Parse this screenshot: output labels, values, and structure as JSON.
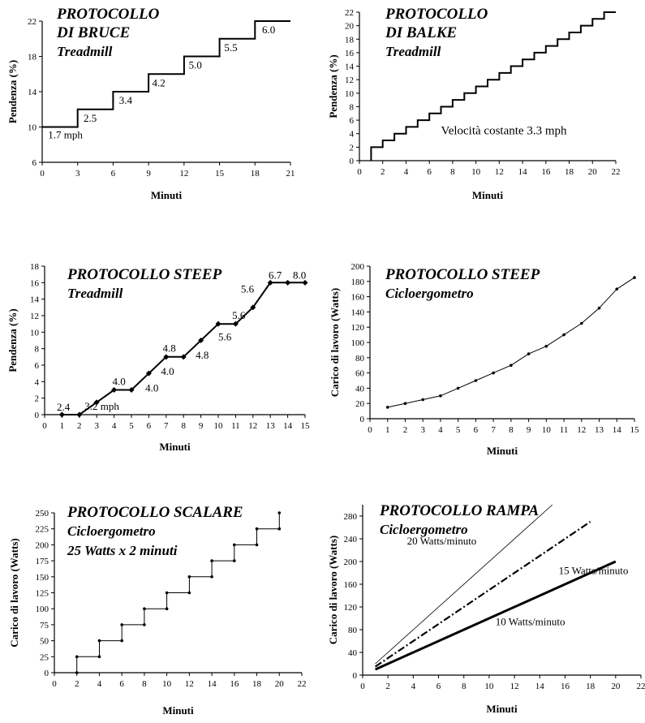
{
  "chart_data": [
    {
      "id": "bruce",
      "type": "line",
      "step": true,
      "title": [
        "PROTOCOLLO",
        "DI BRUCE"
      ],
      "subtitle": [
        "Treadmill"
      ],
      "xlabel": "Minuti",
      "ylabel": "Pendenza (%)",
      "xlim": [
        0,
        21
      ],
      "ylim": [
        6,
        22
      ],
      "xticks": [
        0,
        3,
        6,
        9,
        12,
        15,
        18,
        21
      ],
      "yticks": [
        6,
        10,
        14,
        18,
        22
      ],
      "series": [
        {
          "x": [
            0,
            3,
            3,
            6,
            6,
            9,
            9,
            12,
            12,
            15,
            15,
            18,
            18,
            21
          ],
          "y": [
            10,
            10,
            12,
            12,
            14,
            14,
            16,
            16,
            18,
            18,
            20,
            20,
            22,
            22
          ],
          "style": "solid",
          "width": 2,
          "markers": false
        }
      ],
      "annotations": [
        {
          "text": "1.7 mph",
          "x": 0.5,
          "y": 8.7
        },
        {
          "text": "2.5",
          "x": 3.5,
          "y": 10.6
        },
        {
          "text": "3.4",
          "x": 6.5,
          "y": 12.6
        },
        {
          "text": "4.2",
          "x": 9.3,
          "y": 14.6
        },
        {
          "text": "5.0",
          "x": 12.4,
          "y": 16.6
        },
        {
          "text": "5.5",
          "x": 15.4,
          "y": 18.6
        },
        {
          "text": "6.0",
          "x": 18.6,
          "y": 20.6
        }
      ]
    },
    {
      "id": "balke",
      "type": "line",
      "step": true,
      "title": [
        "PROTOCOLLO",
        "DI BALKE"
      ],
      "subtitle": [
        "Treadmill"
      ],
      "xlabel": "Minuti",
      "ylabel": "Pendenza (%)",
      "xlim": [
        0,
        22
      ],
      "ylim": [
        0,
        22
      ],
      "xticks": [
        0,
        2,
        4,
        6,
        8,
        10,
        12,
        14,
        16,
        18,
        20,
        22
      ],
      "yticks": [
        0,
        2,
        4,
        6,
        8,
        10,
        12,
        14,
        16,
        18,
        20,
        22
      ],
      "series": [
        {
          "x": [
            1,
            1,
            2,
            2,
            3,
            3,
            4,
            4,
            5,
            5,
            6,
            6,
            7,
            7,
            8,
            8,
            9,
            9,
            10,
            10,
            11,
            11,
            12,
            12,
            13,
            13,
            14,
            14,
            15,
            15,
            16,
            16,
            17,
            17,
            18,
            18,
            19,
            19,
            20,
            20,
            21,
            21,
            22
          ],
          "y": [
            0,
            2,
            2,
            3,
            3,
            4,
            4,
            5,
            5,
            6,
            6,
            7,
            7,
            8,
            8,
            9,
            9,
            10,
            10,
            11,
            11,
            12,
            12,
            13,
            13,
            14,
            14,
            15,
            15,
            16,
            16,
            17,
            17,
            18,
            18,
            19,
            19,
            20,
            20,
            21,
            21,
            22,
            22
          ],
          "style": "solid",
          "width": 2,
          "markers": false
        }
      ],
      "annotations": [
        {
          "text": "Velocità costante 3.3 mph",
          "x": 7,
          "y": 3.9,
          "big": true
        }
      ]
    },
    {
      "id": "steep-treadmill",
      "type": "line",
      "title": [
        "PROTOCOLLO STEEP"
      ],
      "subtitle": [
        "Treadmill"
      ],
      "xlabel": "Minuti",
      "ylabel": "Pendenza (%)",
      "xlim": [
        0,
        15
      ],
      "ylim": [
        0,
        18
      ],
      "xticks": [
        0,
        1,
        2,
        3,
        4,
        5,
        6,
        7,
        8,
        9,
        10,
        11,
        12,
        13,
        14,
        15
      ],
      "yticks": [
        0,
        2,
        4,
        6,
        8,
        10,
        12,
        14,
        16,
        18
      ],
      "series": [
        {
          "x": [
            1,
            2,
            3,
            4,
            5,
            6,
            7,
            8,
            9,
            10,
            11,
            12,
            13,
            14,
            15
          ],
          "y": [
            0,
            0,
            1.5,
            3,
            3,
            5,
            7,
            7,
            9,
            11,
            11,
            13,
            16,
            16,
            16
          ],
          "style": "solid",
          "width": 2,
          "markers": "diamond"
        }
      ],
      "annotations": [
        {
          "text": "2.4",
          "x": 0.7,
          "y": 0.5
        },
        {
          "text": "3.2 mph",
          "x": 2.3,
          "y": 0.6
        },
        {
          "text": "4.0",
          "x": 3.9,
          "y": 3.6
        },
        {
          "text": "4.0",
          "x": 5.8,
          "y": 2.8
        },
        {
          "text": "4.0",
          "x": 6.7,
          "y": 4.8
        },
        {
          "text": "4.8",
          "x": 6.8,
          "y": 7.6
        },
        {
          "text": "4.8",
          "x": 8.7,
          "y": 6.8
        },
        {
          "text": "5.6",
          "x": 10.0,
          "y": 9.0
        },
        {
          "text": "5.6",
          "x": 10.8,
          "y": 11.6
        },
        {
          "text": "5.6",
          "x": 11.3,
          "y": 14.8
        },
        {
          "text": "6.7",
          "x": 12.9,
          "y": 16.5
        },
        {
          "text": "8.0",
          "x": 14.3,
          "y": 16.5
        }
      ]
    },
    {
      "id": "steep-cycle",
      "type": "line",
      "title": [
        "PROTOCOLLO STEEP"
      ],
      "subtitle": [
        "Cicloergometro"
      ],
      "xlabel": "Minuti",
      "ylabel": "Carico di lavoro  (Watts)",
      "xlim": [
        0,
        15
      ],
      "ylim": [
        0,
        200
      ],
      "xticks": [
        0,
        1,
        2,
        3,
        4,
        5,
        6,
        7,
        8,
        9,
        10,
        11,
        12,
        13,
        14,
        15
      ],
      "yticks": [
        0,
        20,
        40,
        60,
        80,
        100,
        120,
        140,
        160,
        180,
        200
      ],
      "series": [
        {
          "x": [
            1,
            2,
            3,
            4,
            5,
            6,
            7,
            8,
            9,
            10,
            11,
            12,
            13,
            14,
            15
          ],
          "y": [
            15,
            20,
            25,
            30,
            40,
            50,
            60,
            70,
            85,
            95,
            110,
            125,
            145,
            170,
            185
          ],
          "style": "solid",
          "width": 1,
          "markers": "dot"
        }
      ],
      "annotations": []
    },
    {
      "id": "scalare",
      "type": "line",
      "step": true,
      "title": [
        "PROTOCOLLO SCALARE"
      ],
      "subtitle": [
        "Cicloergometro",
        "25 Watts x 2 minuti"
      ],
      "xlabel": "Minuti",
      "ylabel": "Carico di lavoro  (Watts)",
      "xlim": [
        0,
        22
      ],
      "ylim": [
        0,
        250
      ],
      "xticks": [
        0,
        2,
        4,
        6,
        8,
        10,
        12,
        14,
        16,
        18,
        20,
        22
      ],
      "yticks": [
        0,
        25,
        50,
        75,
        100,
        125,
        150,
        175,
        200,
        225,
        250
      ],
      "series": [
        {
          "x": [
            2,
            2,
            4,
            4,
            6,
            6,
            8,
            8,
            10,
            10,
            12,
            12,
            14,
            14,
            16,
            16,
            18,
            18,
            20,
            20
          ],
          "y": [
            0,
            25,
            25,
            50,
            50,
            75,
            75,
            100,
            100,
            125,
            125,
            150,
            150,
            175,
            175,
            200,
            200,
            225,
            225,
            250
          ],
          "style": "solid",
          "width": 1,
          "markers": "dot"
        }
      ],
      "annotations": []
    },
    {
      "id": "rampa",
      "type": "line",
      "title": [
        "PROTOCOLLO RAMPA"
      ],
      "subtitle": [
        "Cicloergometro"
      ],
      "xlabel": "Minuti",
      "ylabel": "Carico di lavoro  (Watts)",
      "xlim": [
        0,
        22
      ],
      "ylim": [
        0,
        300
      ],
      "xticks": [
        0,
        2,
        4,
        6,
        8,
        10,
        12,
        14,
        16,
        18,
        20,
        22
      ],
      "yticks": [
        0,
        40,
        80,
        120,
        160,
        200,
        240,
        280
      ],
      "series": [
        {
          "name": "20 Watts/minuto",
          "x": [
            1,
            15
          ],
          "y": [
            20,
            300
          ],
          "style": "solid",
          "width": 0.8,
          "markers": false
        },
        {
          "name": "15 Watts/minuto",
          "x": [
            1,
            18
          ],
          "y": [
            15,
            270
          ],
          "style": "dashdot",
          "width": 2.2,
          "markers": false
        },
        {
          "name": "10 Watts/minuto",
          "x": [
            1,
            20
          ],
          "y": [
            10,
            200
          ],
          "style": "solid",
          "width": 3,
          "markers": false
        }
      ],
      "annotations": [
        {
          "text": "20 Watts/minuto",
          "x": 3.5,
          "y": 230
        },
        {
          "text": "15 Watts/minuto",
          "x": 15.5,
          "y": 178
        },
        {
          "text": "10 Watts/minuto",
          "x": 10.5,
          "y": 88
        }
      ]
    }
  ]
}
